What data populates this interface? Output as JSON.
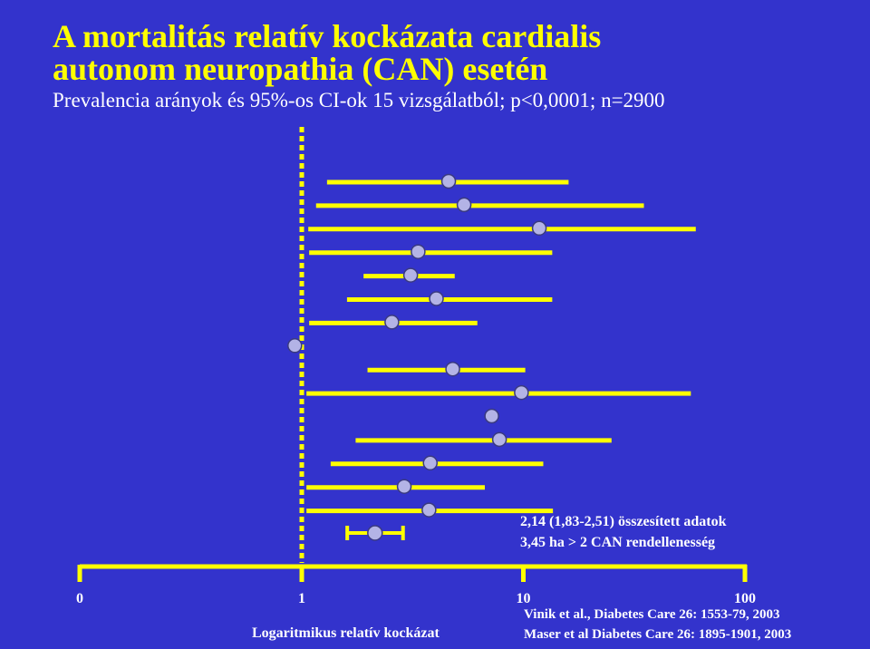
{
  "title_line1": "A mortalitás relatív kockázata cardialis",
  "title_line2": "autonom neuropathia (CAN) esetén",
  "subtitle": "Prevalencia arányok és 95%-os CI-ok 15 vizsgálatból; p<0,0001; n=2900",
  "colors": {
    "background": "#3333cc",
    "ci_line": "#ffff00",
    "point_fill": "#b3b3e6",
    "title": "#ffff00",
    "text": "#ffffff"
  },
  "chart_data": {
    "type": "forest",
    "scale": "log",
    "reference_line": 1,
    "axis_ticks": [
      {
        "label": "0"
      },
      {
        "label": "1",
        "value": 1
      },
      {
        "label": "10",
        "value": 10
      },
      {
        "label": "100",
        "value": 100
      }
    ],
    "xlabel": "Logaritmikus relatív kockázat",
    "studies": [
      {
        "point": 4.6,
        "lower": 1.3,
        "upper": 16
      },
      {
        "point": 5.4,
        "lower": 1.16,
        "upper": 35
      },
      {
        "point": 11.8,
        "lower": 1.07,
        "upper": 60
      },
      {
        "point": 3.35,
        "lower": 1.08,
        "upper": 13.5
      },
      {
        "point": 3.1,
        "lower": 1.9,
        "upper": 4.9
      },
      {
        "point": 4.05,
        "lower": 1.6,
        "upper": 13.5
      },
      {
        "point": 2.55,
        "lower": 1.08,
        "upper": 6.2
      },
      {
        "point": 0.93,
        "lower": 0.88,
        "upper": 0.98
      },
      {
        "point": 4.8,
        "lower": 1.98,
        "upper": 10.2
      },
      {
        "point": 9.8,
        "lower": 1.05,
        "upper": 57
      },
      {
        "point": 7.2,
        "lower": 6.8,
        "upper": 7.6
      },
      {
        "point": 7.8,
        "lower": 1.75,
        "upper": 25
      },
      {
        "point": 3.8,
        "lower": 1.35,
        "upper": 12.3
      },
      {
        "point": 2.9,
        "lower": 1.05,
        "upper": 6.7
      },
      {
        "point": 3.75,
        "lower": 1.05,
        "upper": 13.6
      }
    ],
    "pooled": {
      "point": 2.14,
      "lower": 1.83,
      "upper": 2.51
    },
    "annotations": [
      "2,14 (1,83-2,51)  összesített adatok",
      "3,45 ha > 2 CAN rendellenesség"
    ],
    "references": [
      "Vinik et al., Diabetes Care 26: 1553-79, 2003",
      "Maser et al  Diabetes Care 26: 1895-1901, 2003"
    ]
  }
}
